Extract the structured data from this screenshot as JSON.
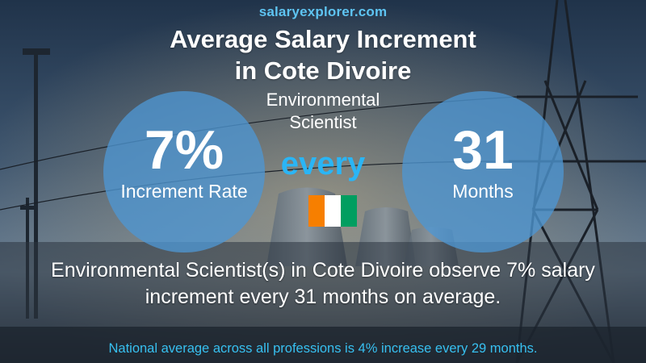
{
  "brand": {
    "part1": "salary",
    "part2": "explorer",
    "part3": ".com"
  },
  "title": {
    "line1": "Average Salary Increment",
    "line2": "in Cote Divoire"
  },
  "job": {
    "line1": "Environmental",
    "line2": "Scientist"
  },
  "increment": {
    "value": "7%",
    "label": "Increment Rate"
  },
  "connector": "every",
  "period": {
    "value": "31",
    "label": "Months"
  },
  "flag": {
    "colors": [
      "#f77f00",
      "#ffffff",
      "#009e60"
    ]
  },
  "summary": {
    "line1": "Environmental Scientist(s) in Cote Divoire observe 7% salary",
    "line2": "increment every 31 months on average."
  },
  "footnote": "National average across all professions is 4% increase every 29 months."
}
